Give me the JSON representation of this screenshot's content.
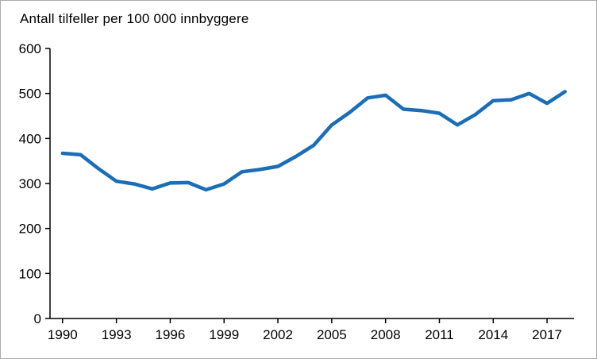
{
  "chart_data": {
    "type": "line",
    "title": "Antall tilfeller per 100 000 innbyggere",
    "x": [
      1990,
      1991,
      1992,
      1993,
      1994,
      1995,
      1996,
      1997,
      1998,
      1999,
      2000,
      2001,
      2002,
      2003,
      2004,
      2005,
      2006,
      2007,
      2008,
      2009,
      2010,
      2011,
      2012,
      2013,
      2014,
      2015,
      2016,
      2017,
      2018
    ],
    "values": [
      367,
      364,
      333,
      305,
      299,
      288,
      301,
      302,
      286,
      299,
      326,
      331,
      338,
      360,
      385,
      430,
      458,
      490,
      496,
      465,
      462,
      456,
      430,
      453,
      484,
      486,
      500,
      478,
      504
    ],
    "xlabel": "",
    "ylabel": "",
    "ylim": [
      0,
      600
    ],
    "yticks": [
      0,
      100,
      200,
      300,
      400,
      500,
      600
    ],
    "xticks": [
      1990,
      1993,
      1996,
      1999,
      2002,
      2005,
      2008,
      2011,
      2014,
      2017
    ],
    "grid": false,
    "legend": false,
    "line_color": "#1b6eb5",
    "axis_color": "#000000"
  }
}
